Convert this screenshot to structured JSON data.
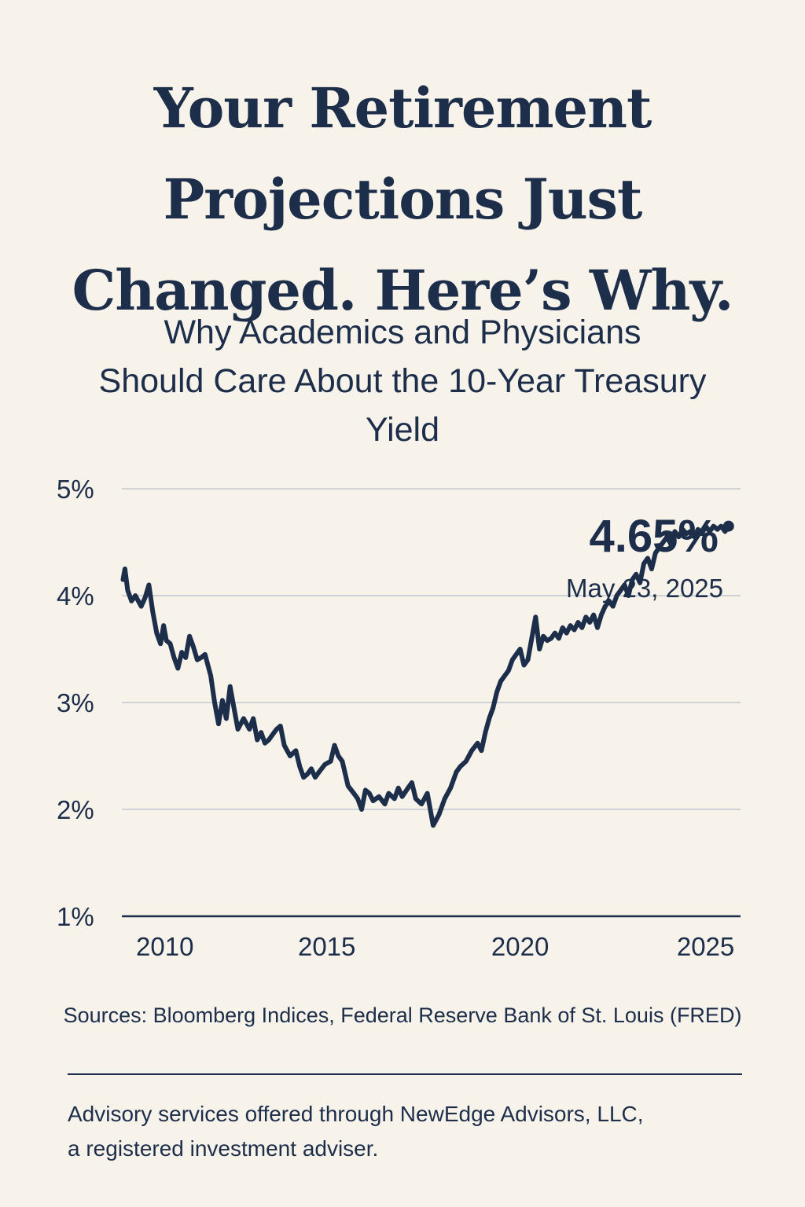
{
  "header": {
    "title_lines": [
      "Your Retirement",
      "Projections Just",
      "Changed. Here’s Why."
    ],
    "subtitle_lines": [
      "Why Academics and Physicians",
      "Should Care About the 10-Year Treasury",
      "Yield"
    ]
  },
  "colors": {
    "background": "#f7f2ea",
    "ink": "#1c2e4a",
    "grid": "#cfd3d6"
  },
  "chart_data": {
    "type": "line",
    "title": "",
    "xlabel": "",
    "ylabel": "",
    "xlim": [
      2009.7,
      2025.7
    ],
    "ylim": [
      1,
      5
    ],
    "x_ticks": [
      2010,
      2015,
      2020,
      2025
    ],
    "x_tick_labels": [
      "2010",
      "2015",
      "2020",
      "2025"
    ],
    "y_ticks": [
      5,
      4,
      3,
      2,
      1
    ],
    "y_tick_labels": [
      "5%",
      "4%",
      "3%",
      "2%",
      "1%"
    ],
    "grid": true,
    "annotation": {
      "value_label": "4.65%",
      "date_label": "May 23, 2025"
    },
    "series": [
      {
        "x": [
          2009.73,
          2009.78,
          2009.85,
          2009.95,
          2010.05,
          2010.2,
          2010.3,
          2010.4,
          2010.5,
          2010.6,
          2010.7,
          2010.78,
          2010.85,
          2010.95,
          2011.05,
          2011.15,
          2011.25,
          2011.35,
          2011.45,
          2011.55,
          2011.65,
          2011.75,
          2011.85,
          2012.0,
          2012.1,
          2012.2,
          2012.3,
          2012.4,
          2012.5,
          2012.6,
          2012.7,
          2012.85,
          2013.0,
          2013.1,
          2013.2,
          2013.3,
          2013.4,
          2013.5,
          2013.6,
          2013.7,
          2013.8,
          2013.9,
          2014.05,
          2014.2,
          2014.3,
          2014.4,
          2014.5,
          2014.6,
          2014.7,
          2014.8,
          2014.95,
          2015.1,
          2015.2,
          2015.3,
          2015.4,
          2015.55,
          2015.7,
          2015.8,
          2015.9,
          2016.0,
          2016.1,
          2016.2,
          2016.35,
          2016.5,
          2016.6,
          2016.75,
          2016.85,
          2016.95,
          2017.1,
          2017.2,
          2017.3,
          2017.45,
          2017.6,
          2017.75,
          2017.9,
          2018.05,
          2018.2,
          2018.35,
          2018.45,
          2018.6,
          2018.75,
          2018.9,
          2019.0,
          2019.1,
          2019.2,
          2019.3,
          2019.4,
          2019.5,
          2019.6,
          2019.7,
          2019.8,
          2019.9,
          2020.0,
          2020.1,
          2020.2,
          2020.3,
          2020.4,
          2020.5,
          2020.6,
          2020.7,
          2020.8,
          2020.9,
          2021.0,
          2021.1,
          2021.2,
          2021.3,
          2021.4,
          2021.5,
          2021.6,
          2021.7,
          2021.8,
          2021.9,
          2022.0,
          2022.1,
          2022.2,
          2022.3,
          2022.4,
          2022.5,
          2022.6,
          2022.7,
          2022.8,
          2022.9,
          2023.0,
          2023.1,
          2023.2,
          2023.3,
          2023.4,
          2023.5,
          2023.6,
          2023.7,
          2023.8,
          2023.9,
          2024.0,
          2024.1,
          2024.2,
          2024.3,
          2024.4,
          2024.5,
          2024.6,
          2024.7,
          2024.8,
          2024.9,
          2025.0,
          2025.1,
          2025.2,
          2025.3,
          2025.39
        ],
        "y": [
          4.15,
          4.25,
          4.05,
          3.95,
          4.0,
          3.9,
          3.98,
          4.1,
          3.85,
          3.65,
          3.55,
          3.72,
          3.58,
          3.55,
          3.42,
          3.32,
          3.47,
          3.42,
          3.62,
          3.52,
          3.4,
          3.42,
          3.45,
          3.25,
          3.0,
          2.8,
          3.02,
          2.85,
          3.15,
          2.95,
          2.75,
          2.85,
          2.75,
          2.85,
          2.65,
          2.72,
          2.62,
          2.65,
          2.7,
          2.75,
          2.78,
          2.6,
          2.5,
          2.55,
          2.4,
          2.3,
          2.33,
          2.38,
          2.3,
          2.35,
          2.42,
          2.45,
          2.6,
          2.5,
          2.45,
          2.22,
          2.15,
          2.1,
          2.0,
          2.18,
          2.15,
          2.08,
          2.12,
          2.05,
          2.15,
          2.1,
          2.2,
          2.12,
          2.2,
          2.25,
          2.1,
          2.05,
          2.15,
          1.85,
          1.95,
          2.1,
          2.2,
          2.35,
          2.4,
          2.45,
          2.55,
          2.62,
          2.55,
          2.72,
          2.85,
          2.95,
          3.1,
          3.2,
          3.25,
          3.3,
          3.4,
          3.45,
          3.5,
          3.35,
          3.4,
          3.6,
          3.8,
          3.5,
          3.62,
          3.58,
          3.6,
          3.65,
          3.6,
          3.7,
          3.65,
          3.72,
          3.68,
          3.75,
          3.7,
          3.8,
          3.75,
          3.82,
          3.7,
          3.82,
          3.9,
          3.95,
          3.9,
          4.0,
          4.05,
          4.1,
          4.0,
          4.15,
          4.2,
          4.12,
          4.3,
          4.35,
          4.25,
          4.4,
          4.45,
          4.5,
          4.55,
          4.48,
          4.6,
          4.55,
          4.62,
          4.58,
          4.6,
          4.55,
          4.62,
          4.58,
          4.65,
          4.6,
          4.65,
          4.62,
          4.65,
          4.6,
          4.65
        ]
      }
    ]
  },
  "footer": {
    "sources": "Sources: Bloomberg Indices, Federal Reserve Bank of St. Louis (FRED)",
    "disclaimer_lines": [
      "Advisory services offered through NewEdge Advisors, LLC,",
      "a registered investment adviser."
    ]
  }
}
